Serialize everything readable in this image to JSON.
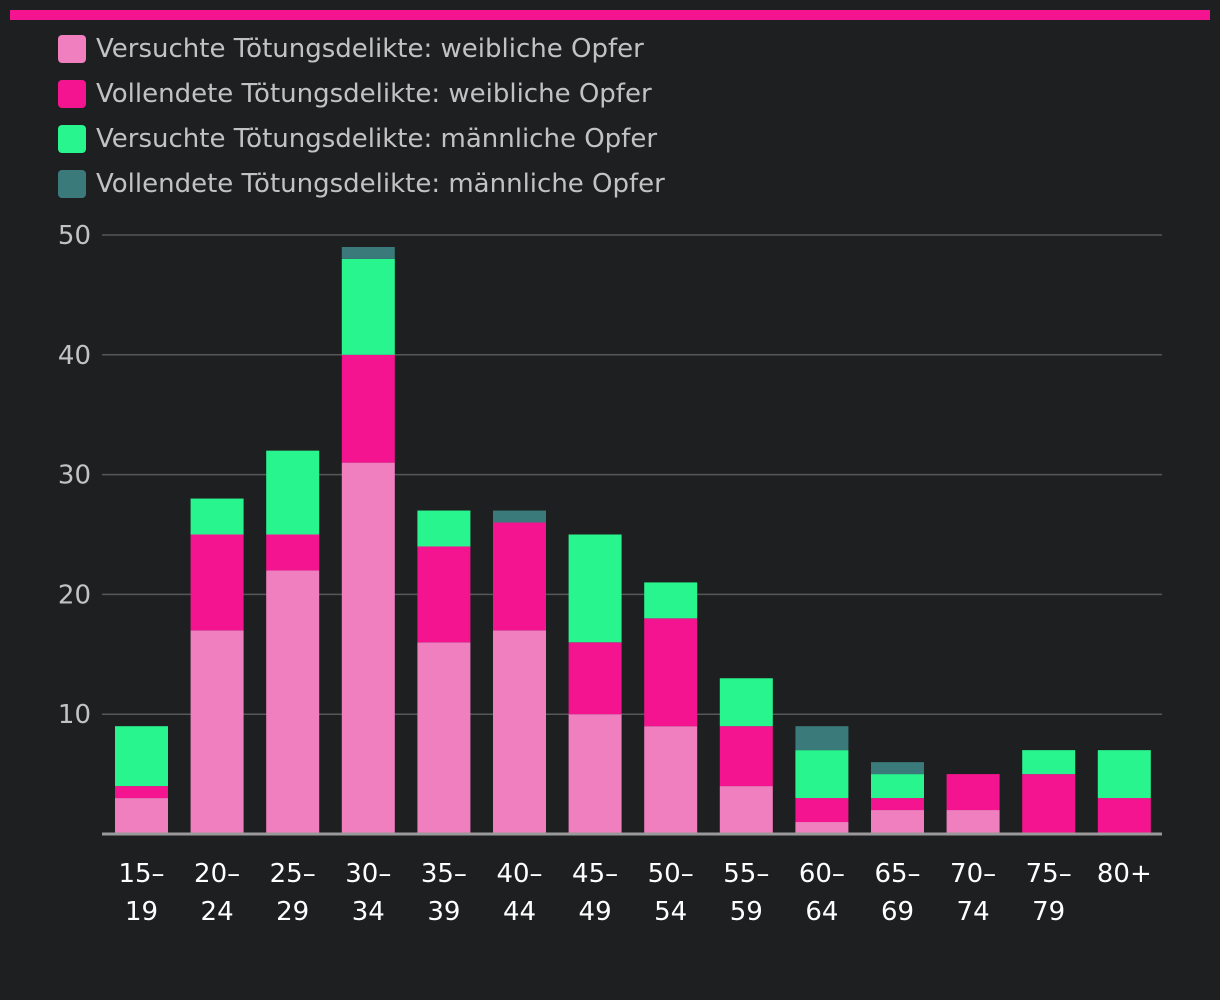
{
  "chart_data": {
    "type": "bar",
    "stacked": true,
    "categories": [
      [
        "15–",
        "19"
      ],
      [
        "20–",
        "24"
      ],
      [
        "25–",
        "29"
      ],
      [
        "30–",
        "34"
      ],
      [
        "35–",
        "39"
      ],
      [
        "40–",
        "44"
      ],
      [
        "45–",
        "49"
      ],
      [
        "50–",
        "54"
      ],
      [
        "55–",
        "59"
      ],
      [
        "60–",
        "64"
      ],
      [
        "65–",
        "69"
      ],
      [
        "70–",
        "74"
      ],
      [
        "75–",
        "79"
      ],
      [
        "80+",
        ""
      ]
    ],
    "series": [
      {
        "name": "Versuchte Tötungsdelikte: weibliche Opfer",
        "color": "#ef7fbf",
        "values": [
          3,
          17,
          22,
          31,
          16,
          17,
          10,
          9,
          4,
          1,
          2,
          2,
          0,
          0
        ]
      },
      {
        "name": "Vollendete Tötungsdelikte: weibliche Opfer",
        "color": "#f5148f",
        "values": [
          1,
          8,
          3,
          9,
          8,
          9,
          6,
          9,
          5,
          2,
          1,
          3,
          5,
          3
        ]
      },
      {
        "name": "Versuchte Tötungsdelikte: männliche Opfer",
        "color": "#29f58f",
        "values": [
          5,
          3,
          7,
          8,
          3,
          0,
          9,
          3,
          4,
          4,
          2,
          0,
          2,
          4
        ]
      },
      {
        "name": "Vollendete Tötungsdelikte: männliche Opfer",
        "color": "#3a7a7a",
        "values": [
          0,
          0,
          0,
          1,
          0,
          1,
          0,
          0,
          0,
          2,
          1,
          0,
          0,
          0
        ]
      }
    ],
    "yticks": [
      10,
      20,
      30,
      40,
      50
    ],
    "ylim": [
      0,
      50
    ],
    "grid": true,
    "legend": "top-left"
  },
  "colors": {
    "accent_bar": "#f5148f",
    "background": "#1e1f21",
    "gridline": "#555759",
    "axis": "#9a9a9a"
  }
}
